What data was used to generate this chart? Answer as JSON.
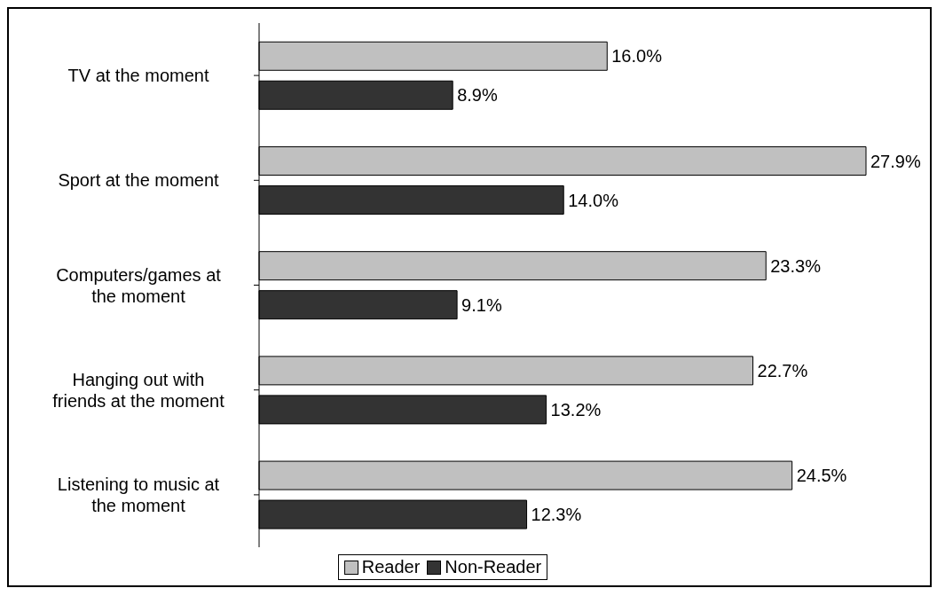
{
  "chart_data": {
    "type": "bar",
    "orientation": "horizontal",
    "categories": [
      "TV at the moment",
      "Sport at the moment",
      "Computers/games at the moment",
      "Hanging out with friends at the moment",
      "Listening to music at the moment"
    ],
    "series": [
      {
        "name": "Reader",
        "color": "#c0c0c0",
        "values": [
          16.0,
          27.9,
          23.3,
          22.7,
          24.5
        ],
        "value_labels": [
          "16.0%",
          "27.9%",
          "23.3%",
          "22.7%",
          "24.5%"
        ]
      },
      {
        "name": "Non-Reader",
        "color": "#333333",
        "values": [
          8.9,
          14.0,
          9.1,
          13.2,
          12.3
        ],
        "value_labels": [
          "8.9%",
          "14.0%",
          "9.1%",
          "13.2%",
          "12.3%"
        ]
      }
    ],
    "legend": "bottom"
  }
}
